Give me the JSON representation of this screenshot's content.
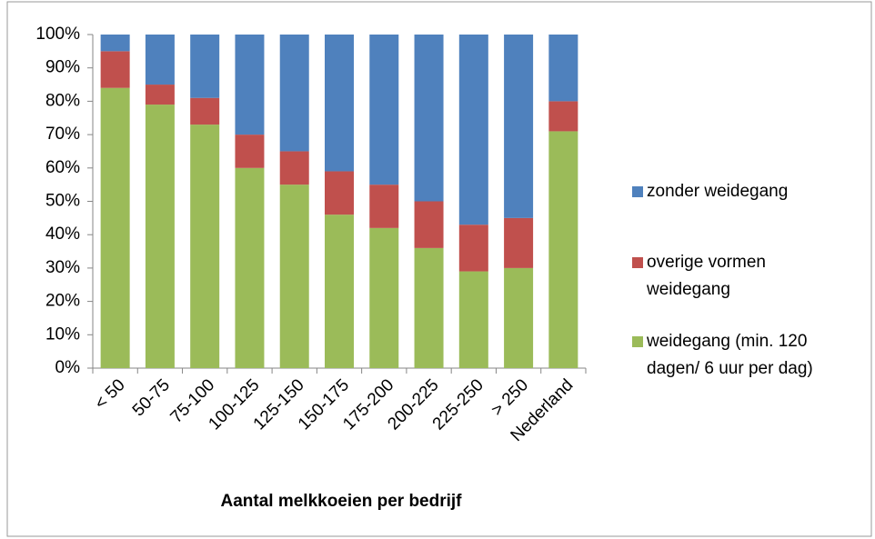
{
  "chart_data": {
    "type": "stacked_bar",
    "x_label": "Aantal melkkoeien per bedrijf",
    "categories": [
      "< 50",
      "50-75",
      "75-100",
      "100-125",
      "125-150",
      "150-175",
      "175-200",
      "200-225",
      "225-250",
      "> 250",
      "Nederland"
    ],
    "series": [
      {
        "name": "weidegang (min. 120 dagen/ 6 uur per dag)",
        "color": "#9bbb59",
        "values": [
          84,
          79,
          73,
          60,
          55,
          46,
          42,
          36,
          29,
          30,
          71
        ]
      },
      {
        "name": "overige vormen weidegang",
        "color": "#c0504d",
        "values": [
          11,
          6,
          8,
          10,
          10,
          13,
          13,
          14,
          14,
          15,
          9
        ]
      },
      {
        "name": "zonder weidegang",
        "color": "#4f81bd",
        "values": [
          5,
          15,
          19,
          30,
          35,
          41,
          45,
          50,
          57,
          55,
          20
        ]
      }
    ],
    "ylim": [
      0,
      100
    ],
    "yticks": [
      {
        "value": 0,
        "label": "0%"
      },
      {
        "value": 10,
        "label": "10%"
      },
      {
        "value": 20,
        "label": "20%"
      },
      {
        "value": 30,
        "label": "30%"
      },
      {
        "value": 40,
        "label": "40%"
      },
      {
        "value": 50,
        "label": "50%"
      },
      {
        "value": 60,
        "label": "60%"
      },
      {
        "value": 70,
        "label": "70%"
      },
      {
        "value": 80,
        "label": "80%"
      },
      {
        "value": 90,
        "label": "90%"
      },
      {
        "value": 100,
        "label": "100%"
      }
    ],
    "legend": "right"
  }
}
